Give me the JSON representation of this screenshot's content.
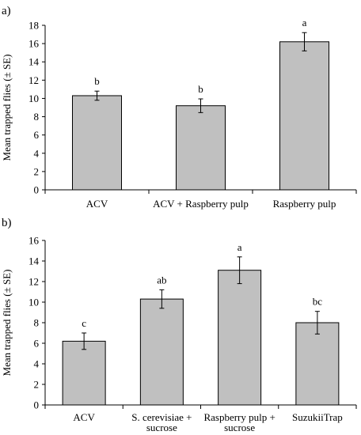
{
  "chart_data": [
    {
      "type": "bar",
      "panel_label": "a)",
      "categories": [
        "ACV",
        "ACV + Raspberry pulp",
        "Raspberry pulp"
      ],
      "values": [
        10.3,
        9.2,
        16.2
      ],
      "errors": [
        0.5,
        0.75,
        1.0
      ],
      "significance_letters": [
        "b",
        "b",
        "a"
      ],
      "ylabel": "Mean trapped  flies (± SE)",
      "xlabel": "",
      "ylim": [
        0,
        18
      ],
      "yticks": [
        0,
        2,
        4,
        6,
        8,
        10,
        12,
        14,
        16,
        18
      ],
      "bar_color": "#c0c0c0",
      "grid": false
    },
    {
      "type": "bar",
      "panel_label": "b)",
      "categories": [
        [
          "ACV"
        ],
        [
          "S. cerevisiae +",
          "sucrose"
        ],
        [
          "Raspberry pulp +",
          "sucrose"
        ],
        [
          "SuzukiiTrap"
        ]
      ],
      "values": [
        6.2,
        10.3,
        13.1,
        8.0
      ],
      "errors": [
        0.8,
        0.9,
        1.3,
        1.1
      ],
      "significance_letters": [
        "c",
        "ab",
        "a",
        "bc"
      ],
      "ylabel": "Mean trapped  flies (± SE)",
      "xlabel": "",
      "ylim": [
        0,
        16
      ],
      "yticks": [
        0,
        2,
        4,
        6,
        8,
        10,
        12,
        14,
        16
      ],
      "bar_color": "#c0c0c0",
      "grid": false
    }
  ]
}
